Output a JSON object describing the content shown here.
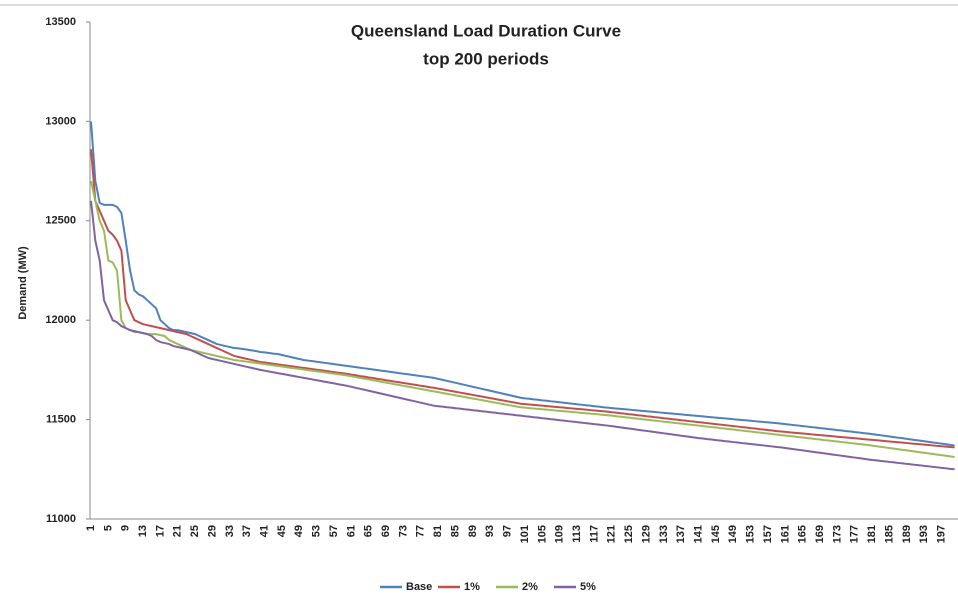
{
  "chart_data": {
    "type": "line",
    "title": "Queensland Load Duration Curve",
    "subtitle": "top 200 periods",
    "y_label": "Demand (MW)",
    "ylim": [
      11000,
      13500
    ],
    "yticks": [
      11000,
      11500,
      12000,
      12500,
      13000,
      13500
    ],
    "grid": false,
    "legend": "bottom",
    "categories": [
      "1",
      null,
      null,
      null,
      "5",
      null,
      null,
      null,
      "9",
      null,
      null,
      null,
      "13",
      null,
      null,
      null,
      "17",
      null,
      null,
      null,
      "21",
      null,
      null,
      null,
      "25",
      null,
      null,
      null,
      "29",
      null,
      null,
      null,
      "33",
      null,
      null,
      null,
      "37",
      null,
      null,
      null,
      "41",
      null,
      null,
      null,
      "45",
      null,
      null,
      null,
      "49",
      null,
      null,
      null,
      "53",
      null,
      null,
      null,
      "57",
      null,
      null,
      null,
      "61",
      null,
      null,
      null,
      "65",
      null,
      null,
      null,
      "69",
      null,
      null,
      null,
      "73",
      null,
      null,
      null,
      "77",
      null,
      null,
      null,
      "81",
      null,
      null,
      null,
      "85",
      null,
      null,
      null,
      "89",
      null,
      null,
      null,
      "93",
      null,
      null,
      null,
      "97",
      null,
      null,
      null,
      "101",
      null,
      null,
      null,
      "105",
      null,
      null,
      null,
      "109",
      null,
      null,
      null,
      "113",
      null,
      null,
      null,
      "117",
      null,
      null,
      null,
      "121",
      null,
      null,
      null,
      "125",
      null,
      null,
      null,
      "129",
      null,
      null,
      null,
      "133",
      null,
      null,
      null,
      "137",
      null,
      null,
      null,
      "141",
      null,
      null,
      null,
      "145",
      null,
      null,
      null,
      "149",
      null,
      null,
      null,
      "153",
      null,
      null,
      null,
      "157",
      null,
      null,
      null,
      "161",
      null,
      null,
      null,
      "165",
      null,
      null,
      null,
      "169",
      null,
      null,
      null,
      "173",
      null,
      null,
      null,
      "177",
      null,
      null,
      null,
      "181",
      null,
      null,
      null,
      "185",
      null,
      null,
      null,
      "189",
      null,
      null,
      null,
      "193",
      null,
      null,
      null,
      "197",
      null,
      null,
      null
    ],
    "series": [
      {
        "name": "Base",
        "color": "#4f81bd",
        "values": [
          13000,
          12700,
          12590,
          12580,
          12580,
          12580,
          12570,
          12540,
          12400,
          12250,
          12150,
          12130,
          12120,
          12100,
          12080,
          12060,
          12000,
          11980,
          11960,
          11950,
          11950,
          11945,
          11940,
          11935,
          11930,
          11920,
          11910,
          11900,
          11890,
          11880,
          11875,
          11870,
          11865,
          11860,
          11858,
          11855,
          11852,
          11848,
          11845,
          11840,
          11838,
          11835,
          11832,
          11830,
          11825,
          11820,
          11815,
          11810,
          11805,
          11800,
          11797,
          11794,
          11791,
          11788,
          11785,
          11782,
          11779,
          11776,
          11773,
          11770,
          11767,
          11764,
          11761,
          11758,
          11755,
          11752,
          11749,
          11746,
          11743,
          11740,
          11737,
          11734,
          11731,
          11728,
          11725,
          11722,
          11719,
          11716,
          11713,
          11710,
          11705,
          11700,
          11695,
          11690,
          11685,
          11680,
          11675,
          11670,
          11665,
          11660,
          11655,
          11650,
          11645,
          11640,
          11635,
          11630,
          11625,
          11620,
          11615,
          11610,
          11607,
          11605,
          11602,
          11600,
          11597,
          11595,
          11592,
          11590,
          11587,
          11585,
          11582,
          11580,
          11577,
          11575,
          11572,
          11570,
          11567,
          11565,
          11562,
          11560,
          11558,
          11556,
          11554,
          11552,
          11550,
          11548,
          11546,
          11544,
          11542,
          11540,
          11538,
          11536,
          11534,
          11532,
          11530,
          11528,
          11526,
          11524,
          11522,
          11520,
          11518,
          11516,
          11514,
          11512,
          11510,
          11508,
          11506,
          11504,
          11502,
          11500,
          11498,
          11496,
          11494,
          11492,
          11490,
          11488,
          11486,
          11484,
          11482,
          11480,
          11477,
          11475,
          11472,
          11470,
          11467,
          11465,
          11462,
          11460,
          11457,
          11455,
          11452,
          11450,
          11447,
          11445,
          11442,
          11440,
          11437,
          11435,
          11432,
          11430,
          11427,
          11424,
          11421,
          11418,
          11415,
          11412,
          11409,
          11406,
          11403,
          11400,
          11397,
          11394,
          11391,
          11388,
          11385,
          11382,
          11379,
          11376,
          11373,
          11370
        ]
      },
      {
        "name": "1%",
        "color": "#c0504d",
        "values": [
          12860,
          12600,
          12550,
          12500,
          12450,
          12430,
          12400,
          12350,
          12100,
          12050,
          12000,
          11990,
          11980,
          11975,
          11970,
          11965,
          11960,
          11955,
          11950,
          11945,
          11940,
          11935,
          11930,
          11920,
          11910,
          11900,
          11890,
          11880,
          11870,
          11860,
          11850,
          11840,
          11830,
          11820,
          11815,
          11810,
          11805,
          11800,
          11795,
          11790,
          11787,
          11784,
          11781,
          11778,
          11775,
          11772,
          11769,
          11766,
          11763,
          11760,
          11757,
          11754,
          11751,
          11748,
          11745,
          11742,
          11739,
          11736,
          11733,
          11730,
          11726,
          11723,
          11719,
          11716,
          11712,
          11709,
          11705,
          11702,
          11698,
          11695,
          11691,
          11688,
          11684,
          11681,
          11677,
          11674,
          11670,
          11667,
          11663,
          11660,
          11656,
          11652,
          11648,
          11644,
          11640,
          11636,
          11632,
          11628,
          11624,
          11620,
          11616,
          11612,
          11608,
          11604,
          11600,
          11596,
          11592,
          11588,
          11584,
          11580,
          11578,
          11576,
          11574,
          11572,
          11570,
          11568,
          11566,
          11564,
          11562,
          11560,
          11558,
          11556,
          11554,
          11552,
          11550,
          11548,
          11546,
          11544,
          11542,
          11540,
          11537,
          11535,
          11532,
          11530,
          11527,
          11525,
          11522,
          11520,
          11517,
          11515,
          11512,
          11510,
          11507,
          11505,
          11502,
          11500,
          11497,
          11495,
          11492,
          11490,
          11487,
          11485,
          11482,
          11480,
          11477,
          11475,
          11472,
          11470,
          11467,
          11465,
          11462,
          11460,
          11457,
          11455,
          11452,
          11450,
          11447,
          11445,
          11442,
          11440,
          11438,
          11436,
          11434,
          11432,
          11430,
          11428,
          11426,
          11424,
          11422,
          11420,
          11418,
          11416,
          11414,
          11412,
          11410,
          11408,
          11406,
          11404,
          11402,
          11400,
          11398,
          11396,
          11394,
          11392,
          11390,
          11388,
          11386,
          11384,
          11382,
          11380,
          11378,
          11376,
          11374,
          11372,
          11370,
          11368,
          11366,
          11364,
          11362,
          11360
        ]
      },
      {
        "name": "2%",
        "color": "#9bbb59",
        "values": [
          12700,
          12600,
          12500,
          12450,
          12300,
          12290,
          12250,
          12000,
          11960,
          11950,
          11940,
          11940,
          11935,
          11930,
          11930,
          11930,
          11925,
          11920,
          11900,
          11890,
          11880,
          11870,
          11860,
          11850,
          11845,
          11840,
          11835,
          11830,
          11825,
          11820,
          11815,
          11810,
          11805,
          11800,
          11797,
          11794,
          11791,
          11788,
          11785,
          11782,
          11779,
          11776,
          11773,
          11770,
          11767,
          11764,
          11761,
          11758,
          11755,
          11752,
          11749,
          11746,
          11743,
          11740,
          11737,
          11734,
          11731,
          11728,
          11725,
          11722,
          11718,
          11714,
          11710,
          11706,
          11702,
          11698,
          11694,
          11690,
          11686,
          11682,
          11678,
          11674,
          11670,
          11666,
          11662,
          11658,
          11654,
          11650,
          11646,
          11642,
          11638,
          11634,
          11630,
          11626,
          11622,
          11618,
          11614,
          11610,
          11606,
          11602,
          11598,
          11594,
          11590,
          11586,
          11582,
          11578,
          11574,
          11570,
          11566,
          11562,
          11560,
          11558,
          11556,
          11554,
          11552,
          11550,
          11548,
          11546,
          11544,
          11542,
          11540,
          11538,
          11536,
          11534,
          11532,
          11530,
          11528,
          11526,
          11524,
          11522,
          11520,
          11517,
          11515,
          11512,
          11510,
          11507,
          11505,
          11502,
          11500,
          11497,
          11495,
          11492,
          11490,
          11487,
          11485,
          11482,
          11480,
          11477,
          11475,
          11472,
          11470,
          11467,
          11465,
          11462,
          11460,
          11457,
          11455,
          11452,
          11450,
          11447,
          11445,
          11442,
          11440,
          11437,
          11435,
          11432,
          11430,
          11427,
          11425,
          11422,
          11420,
          11417,
          11415,
          11412,
          11410,
          11407,
          11405,
          11402,
          11400,
          11397,
          11395,
          11392,
          11390,
          11387,
          11385,
          11382,
          11380,
          11377,
          11375,
          11372,
          11369,
          11366,
          11363,
          11360,
          11357,
          11354,
          11351,
          11348,
          11345,
          11342,
          11339,
          11336,
          11333,
          11330,
          11327,
          11324,
          11321,
          11318,
          11315,
          11312
        ]
      },
      {
        "name": "5%",
        "color": "#8064a2",
        "values": [
          12600,
          12400,
          12300,
          12100,
          12050,
          12000,
          11990,
          11970,
          11960,
          11950,
          11945,
          11940,
          11935,
          11930,
          11920,
          11900,
          11890,
          11885,
          11880,
          11870,
          11865,
          11860,
          11855,
          11850,
          11840,
          11830,
          11820,
          11810,
          11805,
          11800,
          11795,
          11790,
          11785,
          11780,
          11775,
          11770,
          11765,
          11760,
          11755,
          11750,
          11746,
          11742,
          11738,
          11734,
          11730,
          11726,
          11722,
          11718,
          11714,
          11710,
          11706,
          11702,
          11698,
          11694,
          11690,
          11686,
          11682,
          11678,
          11674,
          11670,
          11665,
          11660,
          11655,
          11650,
          11645,
          11640,
          11635,
          11630,
          11625,
          11620,
          11615,
          11610,
          11605,
          11600,
          11595,
          11590,
          11585,
          11580,
          11575,
          11570,
          11567,
          11565,
          11562,
          11560,
          11557,
          11555,
          11552,
          11550,
          11547,
          11545,
          11542,
          11540,
          11537,
          11535,
          11532,
          11530,
          11527,
          11525,
          11522,
          11520,
          11517,
          11515,
          11512,
          11510,
          11507,
          11505,
          11502,
          11500,
          11497,
          11495,
          11492,
          11490,
          11487,
          11485,
          11482,
          11480,
          11477,
          11475,
          11472,
          11470,
          11467,
          11464,
          11461,
          11458,
          11455,
          11452,
          11449,
          11446,
          11443,
          11440,
          11437,
          11434,
          11431,
          11428,
          11425,
          11422,
          11419,
          11416,
          11413,
          11410,
          11407,
          11405,
          11402,
          11400,
          11397,
          11395,
          11392,
          11390,
          11387,
          11385,
          11382,
          11380,
          11377,
          11375,
          11372,
          11370,
          11367,
          11365,
          11362,
          11360,
          11357,
          11354,
          11351,
          11348,
          11345,
          11342,
          11339,
          11336,
          11333,
          11330,
          11327,
          11324,
          11321,
          11318,
          11315,
          11312,
          11309,
          11306,
          11303,
          11300,
          11297,
          11295,
          11292,
          11290,
          11287,
          11285,
          11282,
          11280,
          11277,
          11275,
          11272,
          11270,
          11267,
          11265,
          11262,
          11260,
          11257,
          11255,
          11252,
          11250
        ]
      }
    ]
  }
}
